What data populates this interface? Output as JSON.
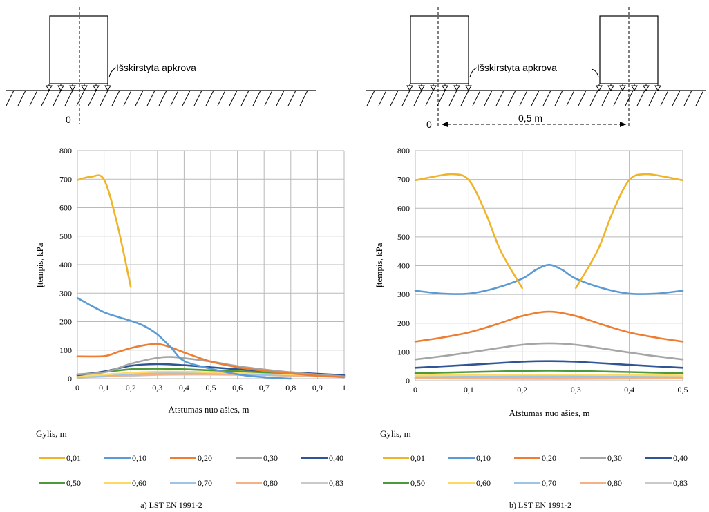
{
  "sketch_a": {
    "load_label": "Išskirstyta apkrova",
    "origin_label": "0"
  },
  "sketch_b": {
    "load_label": "Išskirstyta apkrova",
    "origin_label": "0",
    "distance_label": "0,5 m"
  },
  "legend_title": "Gylis, m",
  "palette": {
    "0,01": "#f0b428",
    "0,10": "#5b9bd5",
    "0,20": "#ed7d31",
    "0,30": "#a5a5a5",
    "0,40": "#2f5597",
    "0,50": "#4e9a3b",
    "0,60": "#ffd966",
    "0,70": "#9dc3e6",
    "0,80": "#f4b183",
    "0,83": "#c9c9c9"
  },
  "chart_data": [
    {
      "type": "line",
      "caption": "a) LST EN 1991-2",
      "xlabel": "Atstumas nuo ašies, m",
      "ylabel": "Įtempis, kPa",
      "xlim": [
        0,
        1
      ],
      "ylim": [
        0,
        800
      ],
      "xticks": [
        "0",
        "0,1",
        "0,2",
        "0,3",
        "0,4",
        "0,5",
        "0,6",
        "0,7",
        "0,8",
        "0,9",
        "1"
      ],
      "yticks": [
        "0",
        "100",
        "200",
        "300",
        "400",
        "500",
        "600",
        "700",
        "800"
      ],
      "grid": true,
      "legend": "bottom",
      "series": [
        {
          "name": "0,01",
          "x": [
            0,
            0.05,
            0.1,
            0.15,
            0.2
          ],
          "y": [
            697,
            708,
            698,
            540,
            322
          ]
        },
        {
          "name": "0,10",
          "x": [
            0,
            0.05,
            0.1,
            0.15,
            0.2,
            0.25,
            0.3,
            0.35,
            0.4,
            0.5,
            0.6,
            0.7,
            0.8
          ],
          "y": [
            283,
            257,
            233,
            217,
            203,
            185,
            155,
            110,
            62,
            35,
            15,
            5,
            0
          ]
        },
        {
          "name": "0,20",
          "x": [
            0,
            0.1,
            0.15,
            0.2,
            0.25,
            0.3,
            0.35,
            0.4,
            0.5,
            0.6,
            0.7,
            0.8,
            0.9,
            1
          ],
          "y": [
            78,
            79,
            93,
            107,
            117,
            122,
            110,
            92,
            60,
            40,
            27,
            18,
            10,
            5
          ]
        },
        {
          "name": "0,30",
          "x": [
            0,
            0.1,
            0.2,
            0.3,
            0.35,
            0.4,
            0.5,
            0.6,
            0.7,
            0.8,
            0.9,
            1
          ],
          "y": [
            15,
            22,
            52,
            73,
            76,
            72,
            60,
            44,
            32,
            22,
            14,
            8
          ]
        },
        {
          "name": "0,40",
          "x": [
            0,
            0.1,
            0.2,
            0.3,
            0.4,
            0.5,
            0.6,
            0.7,
            0.8,
            0.9,
            1
          ],
          "y": [
            12,
            25,
            45,
            51,
            47,
            40,
            33,
            27,
            22,
            17,
            12
          ]
        },
        {
          "name": "0,50",
          "x": [
            0,
            0.1,
            0.2,
            0.3,
            0.4,
            0.5,
            0.6,
            0.7,
            0.8,
            0.9,
            1
          ],
          "y": [
            14,
            23,
            33,
            35,
            33,
            29,
            26,
            22,
            19,
            15,
            10
          ]
        },
        {
          "name": "0,60",
          "x": [
            0,
            0.1,
            0.2,
            0.3,
            0.4,
            0.5,
            0.6,
            0.7,
            0.8,
            0.9,
            1
          ],
          "y": [
            9,
            14,
            20,
            24,
            24,
            22,
            20,
            18,
            15,
            12,
            9
          ]
        },
        {
          "name": "0,70",
          "x": [
            0,
            0.1,
            0.2,
            0.3,
            0.4,
            0.5,
            0.6,
            0.7,
            0.8,
            0.9,
            1
          ],
          "y": [
            7,
            11,
            16,
            19,
            20,
            19,
            17,
            15,
            13,
            11,
            8
          ]
        },
        {
          "name": "0,80",
          "x": [
            0,
            0.1,
            0.2,
            0.3,
            0.4,
            0.5,
            0.6,
            0.7,
            0.8,
            0.9,
            1
          ],
          "y": [
            5,
            8,
            12,
            15,
            16,
            16,
            15,
            13,
            11,
            9,
            7
          ]
        },
        {
          "name": "0,83",
          "x": [
            0,
            0.1,
            0.2,
            0.3,
            0.4,
            0.5,
            0.6,
            0.7,
            0.8,
            0.9,
            1
          ],
          "y": [
            4,
            7,
            10,
            13,
            14,
            14,
            13,
            12,
            10,
            8,
            6
          ]
        }
      ]
    },
    {
      "type": "line",
      "caption": "b) LST EN 1991-2",
      "xlabel": "Atstumas nuo ašies, m",
      "ylabel": "Įtempis, kPa",
      "xlim": [
        0,
        0.5
      ],
      "ylim": [
        0,
        800
      ],
      "xticks": [
        "0",
        "0,1",
        "0,2",
        "0,3",
        "0,4",
        "0,5"
      ],
      "yticks": [
        "0",
        "100",
        "200",
        "300",
        "400",
        "500",
        "600",
        "700",
        "800"
      ],
      "grid": true,
      "legend": "bottom",
      "series": [
        {
          "name": "0,01",
          "segments": [
            {
              "x": [
                0,
                0.03,
                0.07,
                0.1,
                0.13,
                0.16,
                0.2
              ],
              "y": [
                697,
                708,
                718,
                698,
                590,
                450,
                322
              ]
            },
            {
              "x": [
                0.3,
                0.34,
                0.37,
                0.4,
                0.43,
                0.47,
                0.5
              ],
              "y": [
                322,
                450,
                590,
                698,
                718,
                708,
                697
              ]
            }
          ]
        },
        {
          "name": "0,10",
          "x": [
            0,
            0.05,
            0.1,
            0.15,
            0.2,
            0.225,
            0.25,
            0.275,
            0.3,
            0.35,
            0.4,
            0.45,
            0.5
          ],
          "y": [
            313,
            303,
            303,
            322,
            355,
            385,
            403,
            385,
            355,
            322,
            303,
            303,
            313
          ]
        },
        {
          "name": "0,20",
          "x": [
            0,
            0.05,
            0.1,
            0.15,
            0.2,
            0.25,
            0.3,
            0.35,
            0.4,
            0.45,
            0.5
          ],
          "y": [
            136,
            150,
            168,
            195,
            225,
            240,
            225,
            195,
            168,
            150,
            136
          ]
        },
        {
          "name": "0,30",
          "x": [
            0,
            0.05,
            0.1,
            0.15,
            0.2,
            0.25,
            0.3,
            0.35,
            0.4,
            0.45,
            0.5
          ],
          "y": [
            74,
            85,
            98,
            112,
            125,
            130,
            125,
            112,
            98,
            85,
            74
          ]
        },
        {
          "name": "0,40",
          "x": [
            0,
            0.1,
            0.2,
            0.25,
            0.3,
            0.4,
            0.5
          ],
          "y": [
            45,
            55,
            66,
            68,
            66,
            55,
            45
          ]
        },
        {
          "name": "0,50",
          "x": [
            0,
            0.1,
            0.2,
            0.25,
            0.3,
            0.4,
            0.5
          ],
          "y": [
            26,
            30,
            34,
            35,
            34,
            30,
            26
          ]
        },
        {
          "name": "0,60",
          "x": [
            0,
            0.1,
            0.2,
            0.25,
            0.3,
            0.4,
            0.5
          ],
          "y": [
            18,
            20,
            21,
            21,
            21,
            20,
            18
          ]
        },
        {
          "name": "0,70",
          "x": [
            0,
            0.1,
            0.2,
            0.25,
            0.3,
            0.4,
            0.5
          ],
          "y": [
            13,
            14,
            15,
            15,
            15,
            14,
            13
          ]
        },
        {
          "name": "0,80",
          "x": [
            0,
            0.1,
            0.2,
            0.25,
            0.3,
            0.4,
            0.5
          ],
          "y": [
            10,
            10,
            10,
            10,
            10,
            10,
            10
          ]
        },
        {
          "name": "0,83",
          "x": [
            0,
            0.1,
            0.2,
            0.25,
            0.3,
            0.4,
            0.5
          ],
          "y": [
            8,
            7,
            6,
            6,
            6,
            7,
            8
          ]
        }
      ]
    }
  ]
}
